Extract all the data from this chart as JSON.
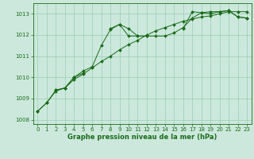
{
  "xlabel": "Graphe pression niveau de la mer (hPa)",
  "hours": [
    0,
    1,
    2,
    3,
    4,
    5,
    6,
    7,
    8,
    9,
    10,
    11,
    12,
    13,
    14,
    15,
    16,
    17,
    18,
    19,
    20,
    21,
    22,
    23
  ],
  "line1": [
    1008.4,
    1008.8,
    1009.4,
    1009.5,
    1010.0,
    1010.2,
    null,
    null,
    1012.3,
    1012.5,
    1012.3,
    1011.95,
    1011.95,
    null,
    null,
    null,
    1012.3,
    1013.1,
    1013.05,
    1013.1,
    1013.1,
    1013.15,
    1012.85,
    1012.8
  ],
  "line2": [
    null,
    null,
    1009.4,
    1009.5,
    1010.0,
    1010.3,
    1010.5,
    1011.5,
    1012.25,
    1012.5,
    1011.95,
    1011.95,
    1011.95,
    1011.95,
    1011.95,
    1012.1,
    1012.35,
    1012.8,
    1013.05,
    1013.0,
    1013.1,
    1013.15,
    1012.85,
    1012.8
  ],
  "line3": [
    1008.4,
    1008.8,
    1009.35,
    1009.5,
    1009.9,
    1010.15,
    1010.45,
    1010.75,
    1011.0,
    1011.3,
    1011.55,
    1011.75,
    1012.0,
    1012.2,
    1012.35,
    1012.5,
    1012.65,
    1012.75,
    1012.85,
    1012.9,
    1013.0,
    1013.1,
    1013.1,
    1013.1
  ],
  "line_color": "#1a6b1a",
  "bg_color": "#cce8dc",
  "grid_color": "#99ccb3",
  "ylim": [
    1007.8,
    1013.5
  ],
  "yticks": [
    1008,
    1009,
    1010,
    1011,
    1012,
    1013
  ],
  "xlim": [
    -0.5,
    23.5
  ],
  "xticks": [
    0,
    1,
    2,
    3,
    4,
    5,
    6,
    7,
    8,
    9,
    10,
    11,
    12,
    13,
    14,
    15,
    16,
    17,
    18,
    19,
    20,
    21,
    22,
    23
  ]
}
